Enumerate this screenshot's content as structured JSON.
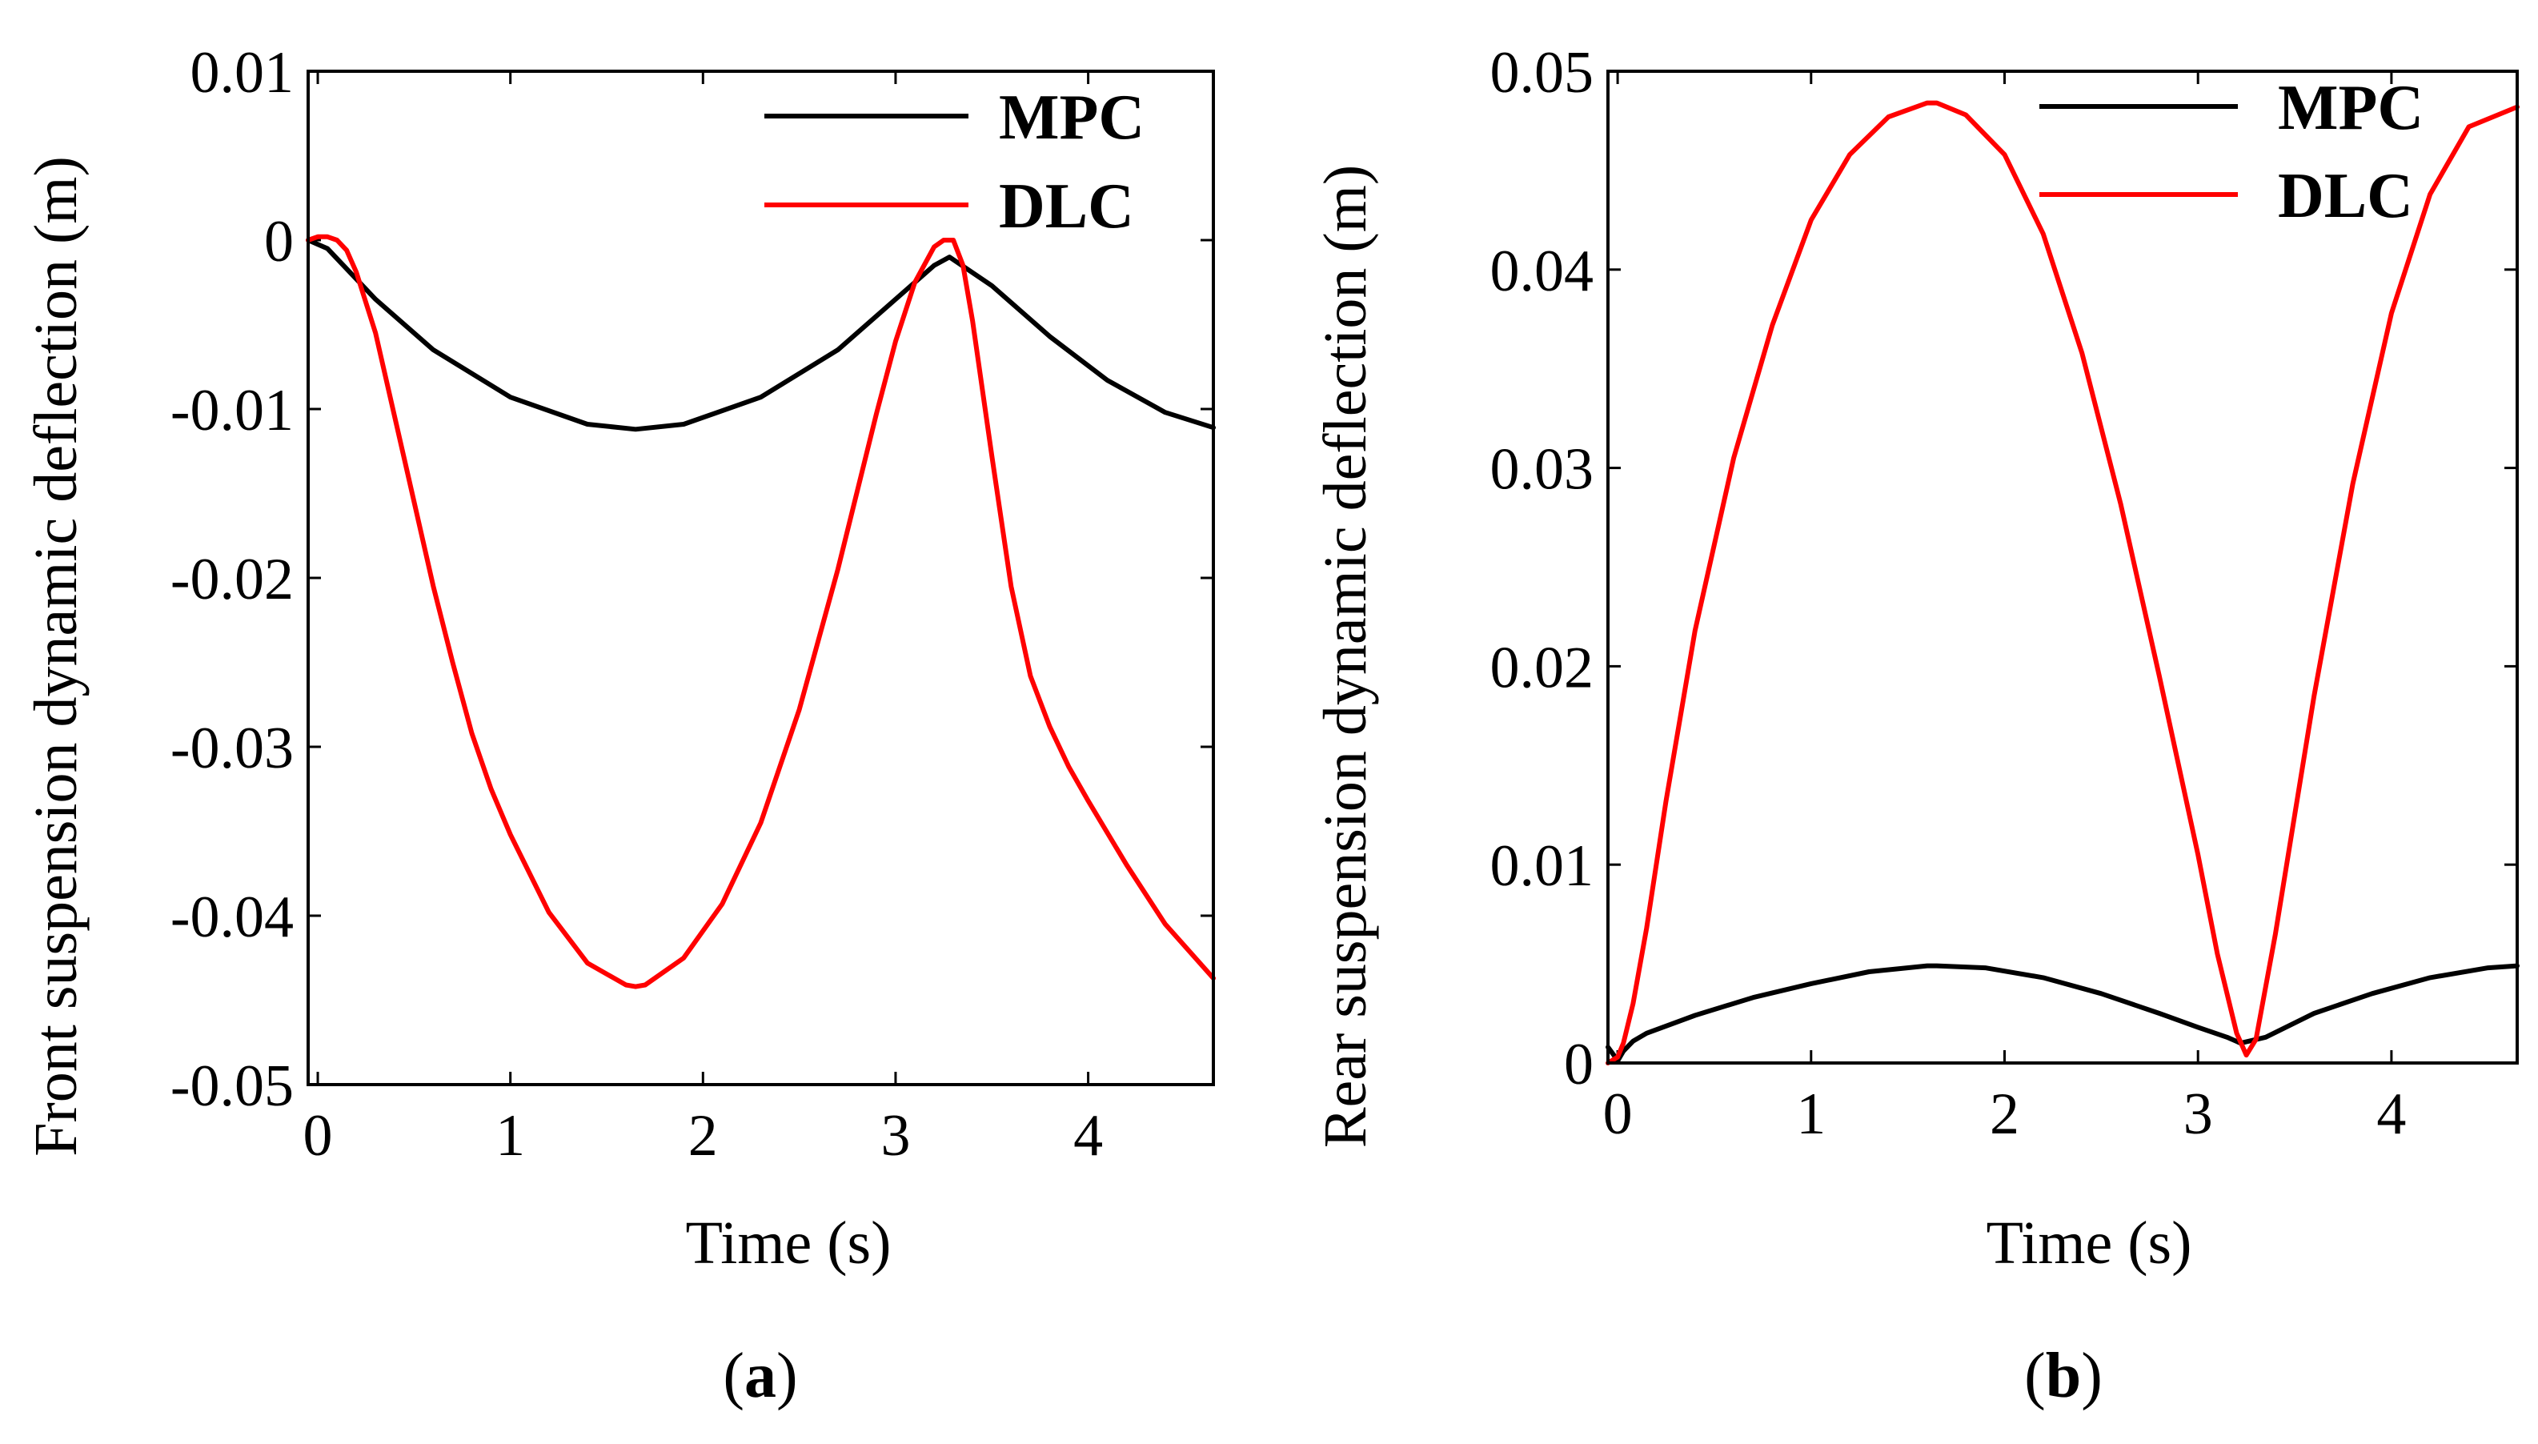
{
  "chart_data": [
    {
      "type": "line",
      "panel": "a",
      "caption": "(a)",
      "xlabel": "Time (s)",
      "ylabel": "Front suspension dynamic deflection (m)",
      "xlim": [
        -0.05,
        4.65
      ],
      "ylim": [
        -0.05,
        0.01
      ],
      "xticks": [
        0,
        1,
        2,
        3,
        4
      ],
      "xtick_labels": [
        "0",
        "1",
        "2",
        "3",
        "4"
      ],
      "yticks": [
        0.01,
        0,
        -0.01,
        -0.02,
        -0.03,
        -0.04,
        -0.05
      ],
      "ytick_labels": [
        "0.01",
        "0",
        "-0.01",
        "-0.02",
        "-0.03",
        "-0.04",
        "-0.05"
      ],
      "legend_position": "top-right",
      "series": [
        {
          "name": "MPC",
          "color": "#000000",
          "x": [
            -0.05,
            0.05,
            0.3,
            0.6,
            1.0,
            1.4,
            1.65,
            1.9,
            2.3,
            2.7,
            3.0,
            3.2,
            3.28,
            3.5,
            3.8,
            4.1,
            4.4,
            4.65
          ],
          "y": [
            0.0,
            -0.0005,
            -0.0035,
            -0.0065,
            -0.0093,
            -0.0109,
            -0.0112,
            -0.0109,
            -0.0093,
            -0.0065,
            -0.0035,
            -0.0015,
            -0.001,
            -0.0027,
            -0.0057,
            -0.0083,
            -0.0102,
            -0.0111
          ]
        },
        {
          "name": "DLC",
          "color": "#ff0000",
          "x": [
            -0.05,
            0.0,
            0.05,
            0.1,
            0.15,
            0.2,
            0.3,
            0.4,
            0.5,
            0.6,
            0.7,
            0.8,
            0.9,
            1.0,
            1.2,
            1.4,
            1.6,
            1.65,
            1.7,
            1.9,
            2.1,
            2.3,
            2.5,
            2.7,
            2.9,
            3.0,
            3.1,
            3.2,
            3.25,
            3.3,
            3.35,
            3.4,
            3.5,
            3.6,
            3.7,
            3.8,
            3.9,
            4.0,
            4.2,
            4.4,
            4.65
          ],
          "y": [
            0.0,
            0.0002,
            0.0002,
            0.0,
            -0.0006,
            -0.0019,
            -0.0055,
            -0.0105,
            -0.0155,
            -0.0205,
            -0.025,
            -0.0292,
            -0.0325,
            -0.0352,
            -0.0398,
            -0.0428,
            -0.0441,
            -0.0442,
            -0.0441,
            -0.0425,
            -0.0393,
            -0.0345,
            -0.0278,
            -0.0195,
            -0.0103,
            -0.006,
            -0.0025,
            -0.0004,
            0.0,
            0.0,
            -0.0015,
            -0.0048,
            -0.0128,
            -0.0205,
            -0.0258,
            -0.0288,
            -0.0312,
            -0.0332,
            -0.037,
            -0.0405,
            -0.0437
          ]
        }
      ]
    },
    {
      "type": "line",
      "panel": "b",
      "caption": "(b)",
      "xlabel": "Time (s)",
      "ylabel": "Rear suspension dynamic deflection (m)",
      "xlim": [
        -0.05,
        4.65
      ],
      "ylim": [
        0,
        0.05
      ],
      "xticks": [
        0,
        1,
        2,
        3,
        4
      ],
      "xtick_labels": [
        "0",
        "1",
        "2",
        "3",
        "4"
      ],
      "yticks": [
        0.05,
        0.04,
        0.03,
        0.02,
        0.01,
        0
      ],
      "ytick_labels": [
        "0.05",
        "0.04",
        "0.03",
        "0.02",
        "0.01",
        "0"
      ],
      "legend_position": "top-right",
      "series": [
        {
          "name": "MPC",
          "color": "#000000",
          "x": [
            -0.05,
            -0.02,
            0.0,
            0.03,
            0.08,
            0.15,
            0.4,
            0.7,
            1.0,
            1.3,
            1.6,
            1.65,
            1.9,
            2.2,
            2.5,
            2.8,
            3.0,
            3.15,
            3.22,
            3.35,
            3.6,
            3.9,
            4.2,
            4.5,
            4.65
          ],
          "y": [
            0.0008,
            0.0004,
            0.0001,
            0.0006,
            0.0011,
            0.0015,
            0.0024,
            0.0033,
            0.004,
            0.0046,
            0.0049,
            0.0049,
            0.0048,
            0.0043,
            0.0035,
            0.0025,
            0.0018,
            0.0013,
            0.001,
            0.0013,
            0.0025,
            0.0035,
            0.0043,
            0.0048,
            0.0049
          ]
        },
        {
          "name": "DLC",
          "color": "#ff0000",
          "x": [
            -0.05,
            0.0,
            0.03,
            0.08,
            0.15,
            0.25,
            0.4,
            0.6,
            0.8,
            1.0,
            1.2,
            1.4,
            1.6,
            1.65,
            1.8,
            2.0,
            2.2,
            2.4,
            2.6,
            2.8,
            3.0,
            3.1,
            3.2,
            3.25,
            3.3,
            3.4,
            3.5,
            3.6,
            3.8,
            4.0,
            4.2,
            4.4,
            4.65
          ],
          "y": [
            0.0,
            0.0003,
            0.001,
            0.003,
            0.0068,
            0.0132,
            0.0218,
            0.0305,
            0.0372,
            0.0425,
            0.0458,
            0.0477,
            0.0484,
            0.0484,
            0.0478,
            0.0458,
            0.0418,
            0.0358,
            0.0282,
            0.0195,
            0.0105,
            0.0055,
            0.0015,
            0.0004,
            0.0012,
            0.0065,
            0.0125,
            0.0185,
            0.0292,
            0.0378,
            0.0438,
            0.0472,
            0.0482
          ]
        }
      ]
    }
  ]
}
